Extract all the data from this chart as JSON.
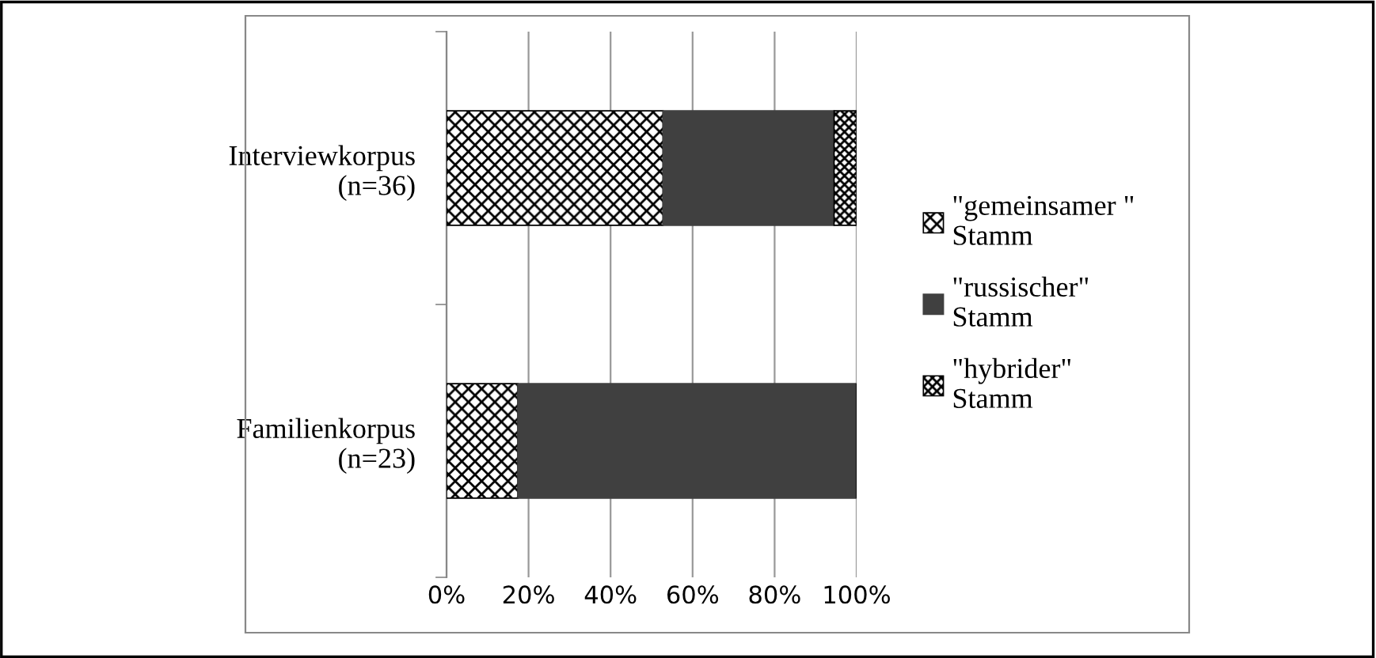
{
  "chart_data": {
    "type": "bar",
    "orientation": "horizontal",
    "stacked": true,
    "categories": [
      "Interviewkorpus\n(n=36)",
      "Familienkorpus\n(n=23)"
    ],
    "series": [
      {
        "name": "\"gemeinsamer \"\nStamm",
        "color": "#000000",
        "values": [
          52.8,
          17.4
        ]
      },
      {
        "name": "\"russischer\"\nStamm",
        "color": "#404040",
        "values": [
          41.7,
          82.6
        ]
      },
      {
        "name": "\"hybrider\"\nStamm",
        "color": "#000000",
        "values": [
          5.5,
          0
        ]
      }
    ],
    "xlim": [
      0,
      100
    ],
    "xticks": [
      {
        "value": 0,
        "label": "0%"
      },
      {
        "value": 20,
        "label": "20%"
      },
      {
        "value": 40,
        "label": "40%"
      },
      {
        "value": 60,
        "label": "60%"
      },
      {
        "value": 80,
        "label": "80%"
      },
      {
        "value": 100,
        "label": "100%"
      }
    ],
    "grid": "x",
    "legend": "right"
  }
}
